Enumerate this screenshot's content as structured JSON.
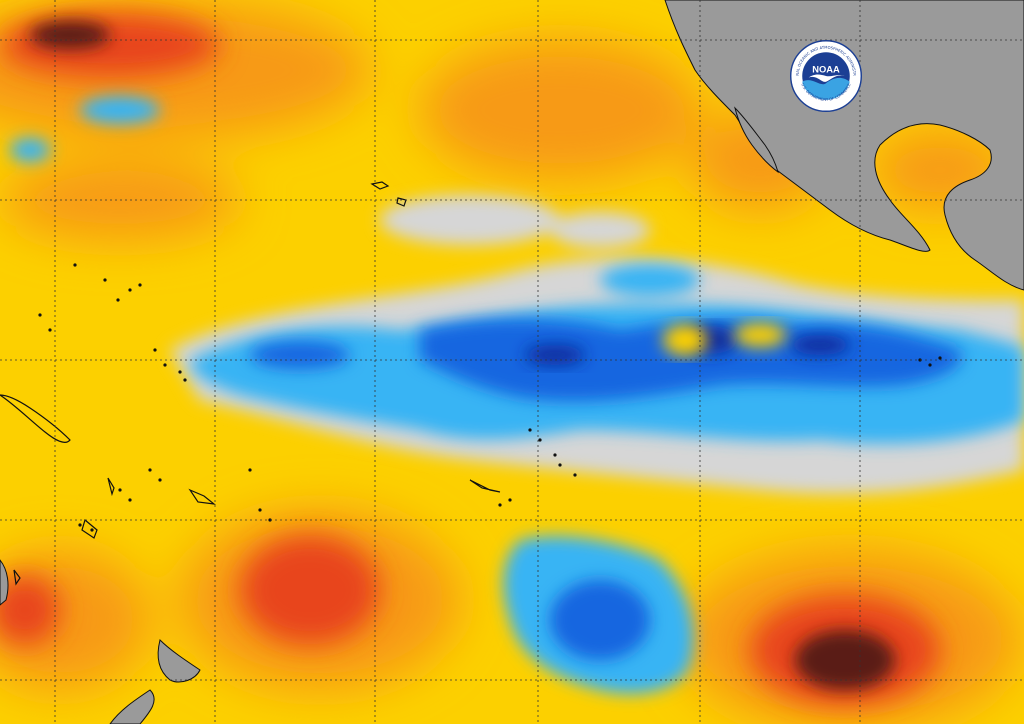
{
  "map": {
    "type": "sea-surface-temperature-anomaly",
    "region": "Pacific Ocean",
    "grid": true,
    "colors": {
      "very_warm": "#5a1a14",
      "warm_red": "#e8441c",
      "warm_orange": "#f79a14",
      "mild_warm": "#fcd000",
      "neutral": "#d6d6d6",
      "cool_light": "#38b4f4",
      "cool": "#1466e0",
      "very_cool": "#0a2c9c",
      "land": "#9a9a9a",
      "coast": "#111111"
    }
  },
  "logo": {
    "icon": "noaa-logo-icon",
    "text": "NOAA",
    "ring_top": "NATIONAL OCEANIC AND ATMOSPHERIC ADMINISTRATION",
    "ring_bottom": "U.S. DEPARTMENT OF COMMERCE",
    "colors": {
      "blue": "#1c3f94",
      "light_blue": "#3aa3e3",
      "white": "#ffffff"
    }
  }
}
